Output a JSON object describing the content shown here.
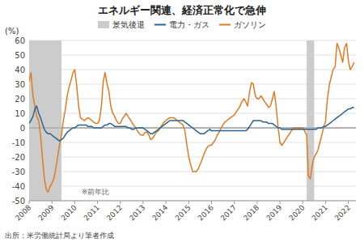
{
  "chart_data": {
    "type": "line",
    "title": "エネルギー関連、経済正常化で急伸",
    "y_label": "(%)",
    "source": "出所：米労働統計局より筆者作成",
    "annotations": [
      "※前年比"
    ],
    "xlim": [
      2008,
      2022.33
    ],
    "xticks": [
      2008,
      2009,
      2010,
      2011,
      2012,
      2013,
      2014,
      2015,
      2016,
      2017,
      2018,
      2019,
      2020,
      2021,
      2022
    ],
    "ylim": [
      -50,
      60
    ],
    "yticks": [
      -50,
      -40,
      -30,
      -20,
      -10,
      0,
      10,
      20,
      30,
      40,
      50,
      60
    ],
    "grid": true,
    "legend": "top",
    "recession": {
      "name": "景気後退",
      "color": "#cccccc",
      "periods": [
        [
          2008.0,
          2009.42
        ],
        [
          2020.17,
          2020.5
        ]
      ]
    },
    "x": [
      2008.0,
      2008.08,
      2008.17,
      2008.25,
      2008.33,
      2008.42,
      2008.5,
      2008.58,
      2008.67,
      2008.75,
      2008.83,
      2008.92,
      2009.0,
      2009.08,
      2009.17,
      2009.25,
      2009.33,
      2009.42,
      2009.5,
      2009.58,
      2009.67,
      2009.75,
      2009.83,
      2009.92,
      2010.0,
      2010.08,
      2010.17,
      2010.25,
      2010.33,
      2010.42,
      2010.5,
      2010.58,
      2010.67,
      2010.75,
      2010.83,
      2010.92,
      2011.0,
      2011.08,
      2011.17,
      2011.25,
      2011.33,
      2011.42,
      2011.5,
      2011.58,
      2011.67,
      2011.75,
      2011.83,
      2011.92,
      2012.0,
      2012.08,
      2012.17,
      2012.25,
      2012.33,
      2012.42,
      2012.5,
      2012.58,
      2012.67,
      2012.75,
      2012.83,
      2012.92,
      2013.0,
      2013.08,
      2013.17,
      2013.25,
      2013.33,
      2013.42,
      2013.5,
      2013.58,
      2013.67,
      2013.75,
      2013.83,
      2013.92,
      2014.0,
      2014.08,
      2014.17,
      2014.25,
      2014.33,
      2014.42,
      2014.5,
      2014.58,
      2014.67,
      2014.75,
      2014.83,
      2014.92,
      2015.0,
      2015.08,
      2015.17,
      2015.25,
      2015.33,
      2015.42,
      2015.5,
      2015.58,
      2015.67,
      2015.75,
      2015.83,
      2015.92,
      2016.0,
      2016.08,
      2016.17,
      2016.25,
      2016.33,
      2016.42,
      2016.5,
      2016.58,
      2016.67,
      2016.75,
      2016.83,
      2016.92,
      2017.0,
      2017.08,
      2017.17,
      2017.25,
      2017.33,
      2017.42,
      2017.5,
      2017.58,
      2017.67,
      2017.75,
      2017.83,
      2017.92,
      2018.0,
      2018.08,
      2018.17,
      2018.25,
      2018.33,
      2018.42,
      2018.5,
      2018.58,
      2018.67,
      2018.75,
      2018.83,
      2018.92,
      2019.0,
      2019.08,
      2019.17,
      2019.25,
      2019.33,
      2019.42,
      2019.5,
      2019.58,
      2019.67,
      2019.75,
      2019.83,
      2019.92,
      2020.0,
      2020.08,
      2020.17,
      2020.25,
      2020.33,
      2020.42,
      2020.5,
      2020.58,
      2020.67,
      2020.75,
      2020.83,
      2020.92,
      2021.0,
      2021.08,
      2021.17,
      2021.25,
      2021.33,
      2021.42,
      2021.5,
      2021.58,
      2021.67,
      2021.75,
      2021.83,
      2021.92,
      2022.0,
      2022.08,
      2022.17,
      2022.25
    ],
    "series": [
      {
        "name": "電力・ガス",
        "color": "#2a6496",
        "values": [
          3,
          5,
          8,
          13,
          15,
          10,
          7,
          3,
          -1,
          -3,
          -4,
          -4,
          -5,
          -6,
          -7,
          -8,
          -9,
          -8,
          -7,
          -5,
          -3,
          -2,
          -1,
          0,
          0,
          1,
          2,
          2,
          2,
          2,
          2,
          1,
          1,
          1,
          0,
          0,
          0,
          0,
          0,
          1,
          2,
          2,
          3,
          3,
          2,
          1,
          1,
          1,
          1,
          1,
          1,
          1,
          0,
          0,
          -1,
          -1,
          0,
          0,
          0,
          0,
          0,
          -1,
          -2,
          -3,
          -4,
          -4,
          -3,
          -2,
          -1,
          0,
          1,
          2,
          3,
          4,
          5,
          5,
          5,
          5,
          5,
          5,
          5,
          5,
          4,
          3,
          2,
          1,
          0,
          -1,
          -2,
          -3,
          -4,
          -4,
          -4,
          -3,
          -2,
          -1,
          -2,
          -2,
          -2,
          -2,
          -2,
          -2,
          -2,
          -2,
          -2,
          -2,
          -2,
          -2,
          -2,
          -2,
          -2,
          -2,
          -2,
          -2,
          -2,
          -1,
          1,
          3,
          5,
          5,
          5,
          5,
          5,
          4,
          4,
          4,
          3,
          3,
          3,
          2,
          1,
          0,
          0,
          -1,
          -1,
          -1,
          -1,
          -1,
          -1,
          -1,
          -1,
          -1,
          -1,
          -1,
          -1,
          -1,
          -1,
          -1,
          -1,
          -1,
          -1,
          -1,
          0,
          0,
          0,
          1,
          1,
          2,
          3,
          4,
          5,
          6,
          7,
          8,
          9,
          10,
          11,
          12,
          13,
          13,
          14,
          14
        ]
      },
      {
        "name": "ガソリン",
        "color": "#e07b24",
        "values": [
          32,
          38,
          22,
          15,
          8,
          5,
          -5,
          -20,
          -35,
          -42,
          -44,
          -40,
          -38,
          -35,
          -28,
          -20,
          -12,
          -5,
          5,
          12,
          22,
          28,
          32,
          38,
          40,
          30,
          15,
          7,
          6,
          5,
          6,
          7,
          6,
          5,
          4,
          3,
          3,
          5,
          15,
          32,
          38,
          30,
          25,
          15,
          10,
          8,
          5,
          3,
          3,
          6,
          8,
          10,
          8,
          6,
          4,
          2,
          0,
          -2,
          -4,
          -5,
          -5,
          -3,
          -3,
          -5,
          -8,
          -7,
          -5,
          -3,
          -2,
          0,
          2,
          4,
          5,
          6,
          7,
          7,
          7,
          6,
          5,
          4,
          3,
          2,
          -2,
          -12,
          -20,
          -25,
          -30,
          -30,
          -30,
          -28,
          -25,
          -22,
          -18,
          -15,
          -13,
          -12,
          -12,
          -10,
          -8,
          -5,
          -3,
          0,
          2,
          4,
          5,
          6,
          7,
          8,
          9,
          11,
          13,
          15,
          18,
          20,
          18,
          15,
          25,
          31,
          30,
          22,
          20,
          20,
          22,
          20,
          18,
          16,
          14,
          15,
          20,
          25,
          15,
          0,
          -10,
          -12,
          -10,
          -8,
          -6,
          -4,
          -2,
          0,
          0,
          0,
          0,
          0,
          0,
          -2,
          -5,
          -33,
          -35,
          -25,
          -20,
          -18,
          -15,
          -10,
          -5,
          0,
          5,
          20,
          30,
          35,
          40,
          42,
          58,
          55,
          50,
          45,
          55,
          58,
          46,
          40,
          42,
          45
        ]
      }
    ]
  }
}
